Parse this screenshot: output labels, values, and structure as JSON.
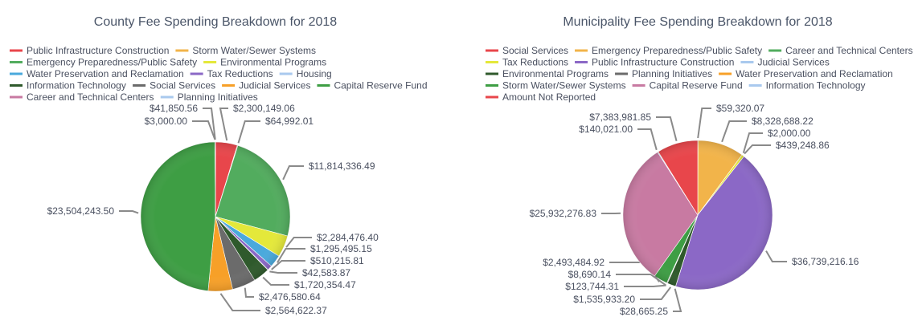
{
  "chart_data": [
    {
      "type": "pie",
      "title": "County Fee Spending Breakdown for 2018",
      "direction": "clockwise",
      "legend_placement": "top",
      "labels": [
        "Public Infrastructure Construction",
        "Storm Water/Sewer Systems",
        "Emergency Preparedness/Public Safety",
        "Environmental Programs",
        "Water Preservation and Reclamation",
        "Tax Reductions",
        "Housing",
        "Information Technology",
        "Social Services",
        "Judicial Services",
        "Capital Reserve Fund",
        "Career and Technical Centers",
        "Planning Initiatives"
      ],
      "values": [
        2300149.06,
        64992.01,
        11814336.49,
        2284476.4,
        1295495.15,
        510215.81,
        42583.87,
        1720354.47,
        2476580.64,
        2564622.37,
        23504243.5,
        3000.0,
        41850.56
      ],
      "text_labels": [
        "$2,300,149.06",
        "$64,992.01",
        "$11,814,336.49",
        "$2,284,476.40",
        "$1,295,495.15",
        "$510,215.81",
        "$42,583.87",
        "$1,720,354.47",
        "$2,476,580.64",
        "$2,564,622.37",
        "$23,504,243.50",
        "$3,000.00",
        "$41,850.56"
      ],
      "colors": [
        "#e8464b",
        "#f2b44a",
        "#52ac5e",
        "#e4e83a",
        "#4aa9dc",
        "#8b68c6",
        "#a9c9ee",
        "#2f5a2c",
        "#6b6b6b",
        "#f7a028",
        "#3e9e44",
        "#c87aa2",
        "#a9c9ee"
      ]
    },
    {
      "type": "pie",
      "title": "Municipality Fee Spending Breakdown for 2018",
      "direction": "clockwise",
      "legend_placement": "top",
      "labels": [
        "Social Services",
        "Emergency Preparedness/Public Safety",
        "Career and Technical Centers",
        "Tax Reductions",
        "Public Infrastructure Construction",
        "Judicial Services",
        "Environmental Programs",
        "Planning Initiatives",
        "Water Preservation and Reclamation",
        "Storm Water/Sewer Systems",
        "Capital Reserve Fund",
        "Information Technology",
        "Amount Not Reported"
      ],
      "values": [
        59320.07,
        8328688.22,
        2000.0,
        439248.86,
        36739216.16,
        28665.25,
        1535933.2,
        123744.31,
        8690.14,
        2493484.92,
        25932276.83,
        140021.0,
        7383981.85
      ],
      "text_labels": [
        "$59,320.07",
        "$8,328,688.22",
        "$2,000.00",
        "$439,248.86",
        "$36,739,216.16",
        "$28,665.25",
        "$1,535,933.20",
        "$123,744.31",
        "$8,690.14",
        "$2,493,484.92",
        "$25,932,276.83",
        "$140,021.00",
        "$7,383,981.85"
      ],
      "colors": [
        "#e8464b",
        "#f2b44a",
        "#52ac5e",
        "#e4e83a",
        "#8b68c6",
        "#a9c9ee",
        "#2f5a2c",
        "#6b6b6b",
        "#f7a028",
        "#3e9e44",
        "#c87aa2",
        "#a9c9ee",
        "#e8464b"
      ]
    }
  ]
}
